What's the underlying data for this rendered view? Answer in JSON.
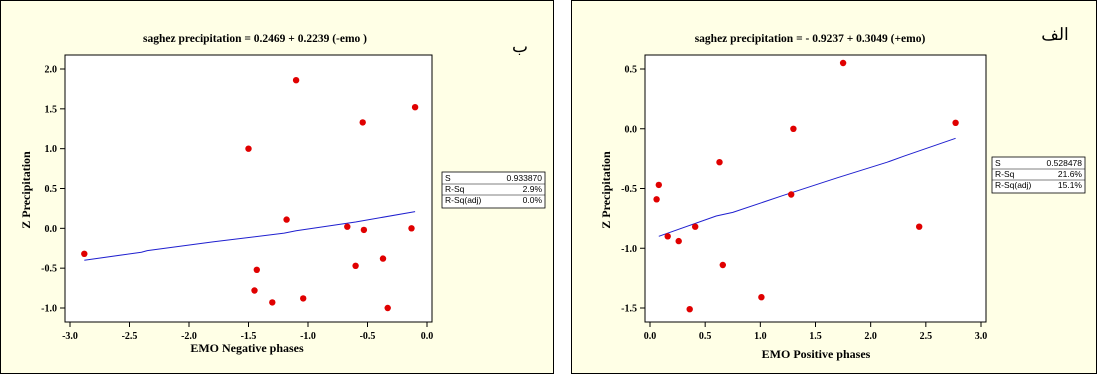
{
  "colors": {
    "panel_bg": "#FFFFE6",
    "plot_bg": "#FFFFFF",
    "point": "#E00000",
    "fit_line": "#1F1FCF",
    "frame": "#000000"
  },
  "chart_data": [
    {
      "type": "scatter",
      "title": "saghez precipitation =  0.2469 + 0.2239 (-emo )",
      "panel_label": "ب",
      "xlabel": "EMO Negative phases",
      "ylabel": "Z Precipitation",
      "xlim": [
        -3.0,
        0.0
      ],
      "ylim": [
        -1.0,
        2.0
      ],
      "x_ticks": [
        -3.0,
        -2.5,
        -2.0,
        -1.5,
        -1.0,
        -0.5,
        0.0
      ],
      "x_tick_labels": [
        "-3.0",
        "-2.5",
        "-2.0",
        "-1.5",
        "-1.0",
        "-0.5",
        "0.0"
      ],
      "y_ticks": [
        -1.0,
        -0.5,
        0.0,
        0.5,
        1.0,
        1.5,
        2.0
      ],
      "y_tick_labels": [
        "-1.0",
        "-0.5",
        "0.0",
        "0.5",
        "1.0",
        "1.5",
        "2.0"
      ],
      "grid": false,
      "points": [
        {
          "x": -2.88,
          "y": -0.32
        },
        {
          "x": -1.5,
          "y": 1.0
        },
        {
          "x": -1.45,
          "y": -0.78
        },
        {
          "x": -1.43,
          "y": -0.52
        },
        {
          "x": -1.3,
          "y": -0.93
        },
        {
          "x": -1.18,
          "y": 0.11
        },
        {
          "x": -1.1,
          "y": 1.86
        },
        {
          "x": -1.04,
          "y": -0.88
        },
        {
          "x": -0.67,
          "y": 0.02
        },
        {
          "x": -0.6,
          "y": -0.47
        },
        {
          "x": -0.54,
          "y": 1.33
        },
        {
          "x": -0.53,
          "y": -0.02
        },
        {
          "x": -0.37,
          "y": -0.38
        },
        {
          "x": -0.33,
          "y": -1.0
        },
        {
          "x": -0.13,
          "y": 0.0
        },
        {
          "x": -0.1,
          "y": 1.52
        }
      ],
      "fit_line": [
        {
          "x": -2.88,
          "y": -0.4
        },
        {
          "x": -2.4,
          "y": -0.3
        },
        {
          "x": -2.35,
          "y": -0.28
        },
        {
          "x": -1.8,
          "y": -0.17
        },
        {
          "x": -1.2,
          "y": -0.06
        },
        {
          "x": -1.1,
          "y": -0.03
        },
        {
          "x": -0.6,
          "y": 0.08
        },
        {
          "x": -0.1,
          "y": 0.21
        }
      ],
      "legend_position": "right",
      "stats": [
        {
          "label": "S",
          "value": "0.933870"
        },
        {
          "label": "R-Sq",
          "value": "2.9%"
        },
        {
          "label": "R-Sq(adj)",
          "value": "0.0%"
        }
      ]
    },
    {
      "type": "scatter",
      "title": "saghez  precipitation = - 0.9237 + 0.3049 (+emo)",
      "panel_label": "الف",
      "xlabel": "EMO Positive phases",
      "ylabel": "Z Precipitation",
      "xlim": [
        0.0,
        3.0
      ],
      "ylim": [
        -1.5,
        0.5
      ],
      "x_ticks": [
        0.0,
        0.5,
        1.0,
        1.5,
        2.0,
        2.5,
        3.0
      ],
      "x_tick_labels": [
        "0.0",
        "0.5",
        "1.0",
        "1.5",
        "2.0",
        "2.5",
        "3.0"
      ],
      "y_ticks": [
        -1.5,
        -1.0,
        -0.5,
        0.0,
        0.5
      ],
      "y_tick_labels": [
        "-1.5",
        "-1.0",
        "-0.5",
        "0.0",
        "0.5"
      ],
      "grid": false,
      "points": [
        {
          "x": 0.06,
          "y": -0.59
        },
        {
          "x": 0.08,
          "y": -0.47
        },
        {
          "x": 0.16,
          "y": -0.9
        },
        {
          "x": 0.26,
          "y": -0.94
        },
        {
          "x": 0.36,
          "y": -1.51
        },
        {
          "x": 0.41,
          "y": -0.82
        },
        {
          "x": 0.63,
          "y": -0.28
        },
        {
          "x": 0.66,
          "y": -1.14
        },
        {
          "x": 1.01,
          "y": -1.41
        },
        {
          "x": 1.28,
          "y": -0.55
        },
        {
          "x": 1.3,
          "y": 0.0
        },
        {
          "x": 1.75,
          "y": 0.55
        },
        {
          "x": 2.44,
          "y": -0.82
        },
        {
          "x": 2.77,
          "y": 0.05
        }
      ],
      "fit_line": [
        {
          "x": 0.08,
          "y": -0.9
        },
        {
          "x": 0.6,
          "y": -0.73
        },
        {
          "x": 0.75,
          "y": -0.7
        },
        {
          "x": 1.2,
          "y": -0.56
        },
        {
          "x": 1.7,
          "y": -0.41
        },
        {
          "x": 2.15,
          "y": -0.28
        },
        {
          "x": 2.3,
          "y": -0.23
        },
        {
          "x": 2.77,
          "y": -0.08
        }
      ],
      "legend_position": "right",
      "stats": [
        {
          "label": "S",
          "value": "0.528478"
        },
        {
          "label": "R-Sq",
          "value": "21.6%"
        },
        {
          "label": "R-Sq(adj)",
          "value": "15.1%"
        }
      ]
    }
  ]
}
